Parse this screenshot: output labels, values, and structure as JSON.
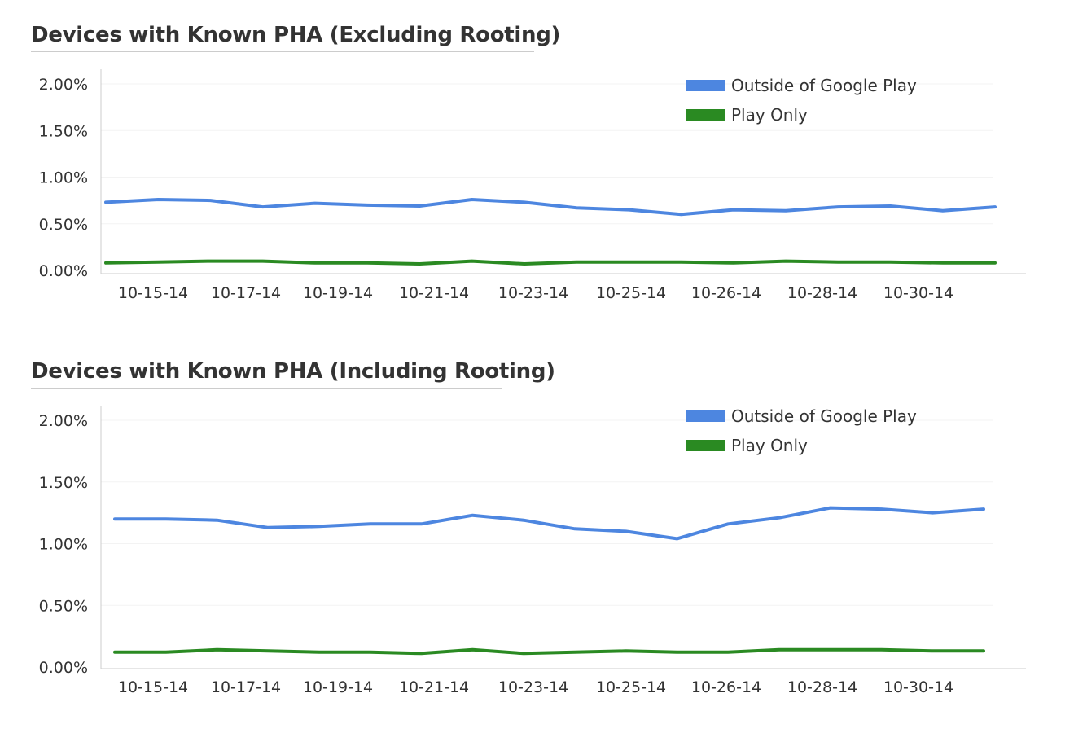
{
  "chart_data": [
    {
      "type": "line",
      "title": "Devices with Known PHA (Excluding Rooting)",
      "xlabel": "",
      "ylabel": "",
      "ylim": [
        0,
        2
      ],
      "yticks": [
        "0.00%",
        "0.50%",
        "1.00%",
        "1.50%",
        "2.00%"
      ],
      "yticks_values": [
        0,
        0.5,
        1,
        1.5,
        2
      ],
      "xtick_labels": [
        "10-15-14",
        "10-17-14",
        "10-19-14",
        "10-21-14",
        "10-23-14",
        "10-25-14",
        "10-26-14",
        "10-28-14",
        "10-30-14"
      ],
      "legend_position": "top-right",
      "grid": true,
      "series": [
        {
          "name": "Outside of Google Play",
          "color": "#4d86e0",
          "values": [
            0.73,
            0.76,
            0.75,
            0.68,
            0.72,
            0.7,
            0.69,
            0.76,
            0.73,
            0.67,
            0.65,
            0.6,
            0.65,
            0.64,
            0.68,
            0.69,
            0.64,
            0.68
          ]
        },
        {
          "name": "Play Only",
          "color": "#2a8a22",
          "values": [
            0.08,
            0.09,
            0.1,
            0.1,
            0.08,
            0.08,
            0.07,
            0.1,
            0.07,
            0.09,
            0.09,
            0.09,
            0.08,
            0.1,
            0.09,
            0.09,
            0.08,
            0.08
          ]
        }
      ]
    },
    {
      "type": "line",
      "title": "Devices with Known PHA (Including Rooting)",
      "xlabel": "",
      "ylabel": "",
      "ylim": [
        0,
        2
      ],
      "yticks": [
        "0.00%",
        "0.50%",
        "1.00%",
        "1.50%",
        "2.00%"
      ],
      "yticks_values": [
        0,
        0.5,
        1,
        1.5,
        2
      ],
      "xtick_labels": [
        "10-15-14",
        "10-17-14",
        "10-19-14",
        "10-21-14",
        "10-23-14",
        "10-25-14",
        "10-26-14",
        "10-28-14",
        "10-30-14"
      ],
      "legend_position": "top-right",
      "grid": true,
      "series": [
        {
          "name": "Outside of Google Play",
          "color": "#4d86e0",
          "values": [
            1.2,
            1.2,
            1.19,
            1.13,
            1.14,
            1.16,
            1.16,
            1.23,
            1.19,
            1.12,
            1.1,
            1.04,
            1.16,
            1.21,
            1.29,
            1.28,
            1.25,
            1.28
          ]
        },
        {
          "name": "Play Only",
          "color": "#2a8a22",
          "values": [
            0.12,
            0.12,
            0.14,
            0.13,
            0.12,
            0.12,
            0.11,
            0.14,
            0.11,
            0.12,
            0.13,
            0.12,
            0.12,
            0.14,
            0.14,
            0.14,
            0.13,
            0.13
          ]
        }
      ]
    }
  ]
}
